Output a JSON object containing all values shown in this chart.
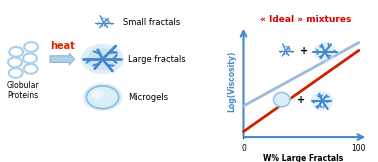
{
  "title": "« Ideal » mixtures",
  "title_color": "#dd0000",
  "xlabel": "W% Large Fractals",
  "ylabel": "Log(Viscosity)",
  "axis_color": "#4488cc",
  "line1": {
    "x": [
      0,
      100
    ],
    "y": [
      0.28,
      0.85
    ],
    "color": "#99bbdd",
    "lw": 2.0
  },
  "line2": {
    "x": [
      0,
      100
    ],
    "y": [
      0.05,
      0.78
    ],
    "color": "#cc2200",
    "lw": 2.0
  },
  "heat_label": "heat",
  "heat_color": "#dd2200",
  "globular_label": "Globular\nProteins",
  "labels": [
    "Small fractals",
    "Large fractals",
    "Microgels"
  ],
  "bg_color": "#ffffff",
  "blue_light": "#a8d0ee",
  "blue_mid": "#4488cc",
  "blue_dark": "#1155aa"
}
